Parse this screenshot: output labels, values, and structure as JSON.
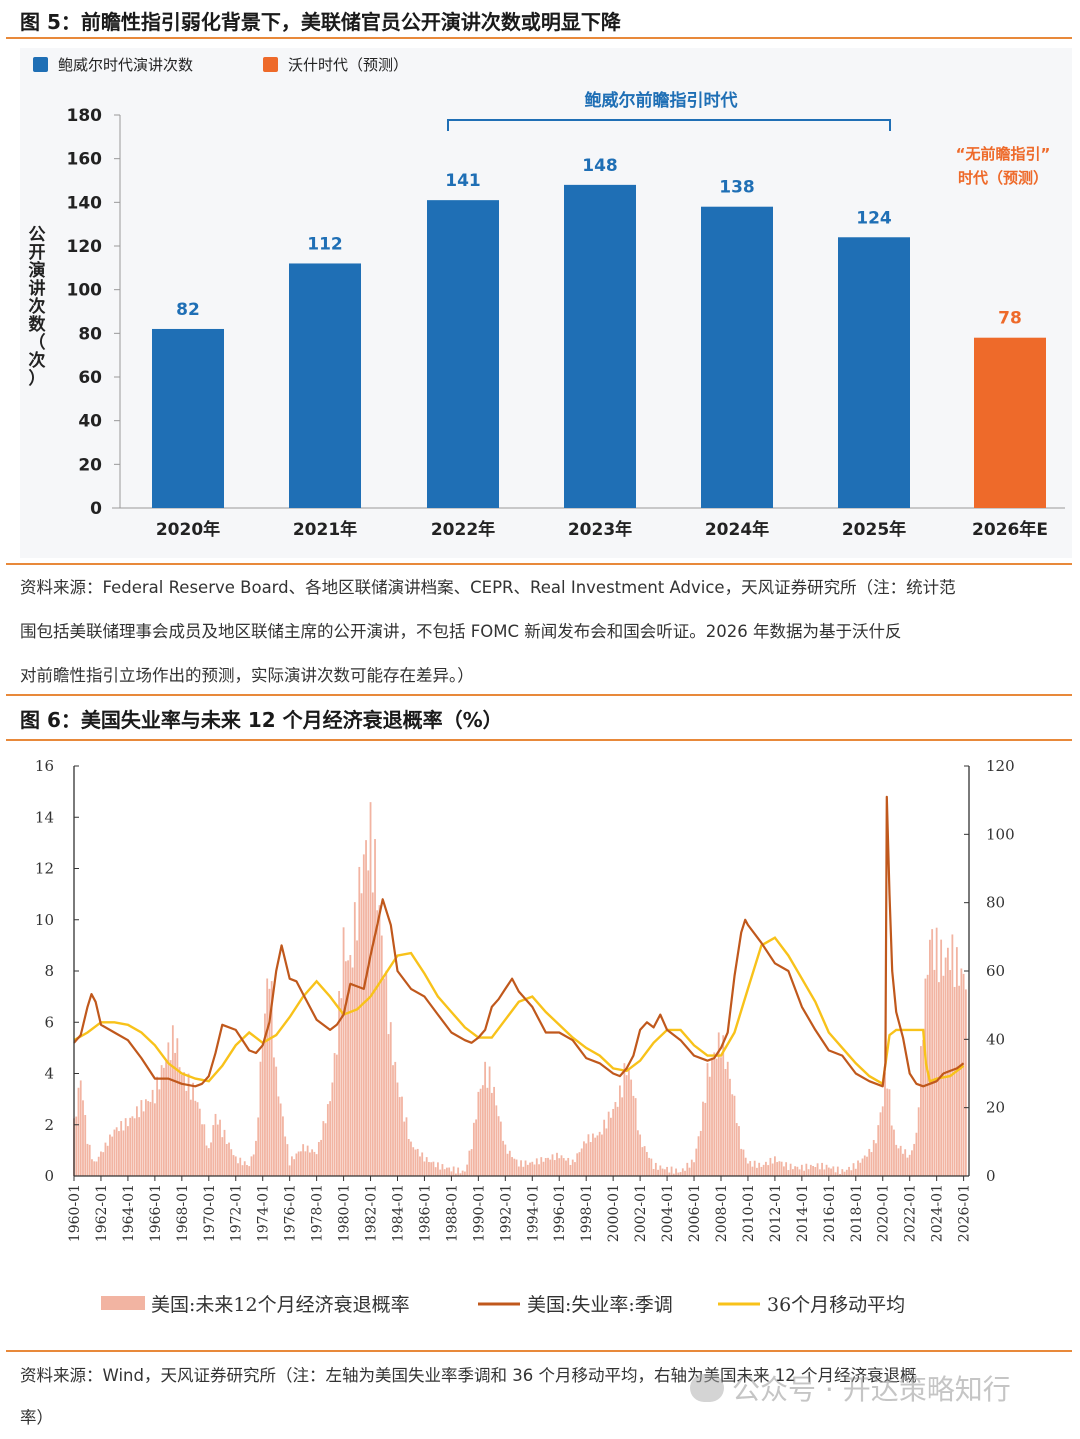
{
  "figure5": {
    "title": "图 5：前瞻性指引弱化背景下，美联储官员公开演讲次数或明显下降",
    "note_lines": [
      "资料来源：Federal Reserve Board、各地区联储演讲档案、CEPR、Real Investment Advice，天风证券研究所（注：统计范",
      "围包括美联储理事会成员及地区联储主席的公开演讲，不包括 FOMC 新闻发布会和国会听证。2026 年数据为基于沃什反",
      "对前瞻性指引立场作出的预测，实际演讲次数可能存在差异。）"
    ]
  },
  "figure6": {
    "title": "图 6：美国失业率与未来 12 个月经济衰退概率（%）",
    "note_lines": [
      "资料来源：Wind，天风证券研究所（注：左轴为美国失业率季调和 36 个月移动平均，右轴为美国未来 12 个月经济衰退概",
      "率）"
    ]
  },
  "watermark": "公众号 · 开达策略知行",
  "colors": {
    "blue": "#1f6fb5",
    "orange": "#ee6a2a",
    "rule": "#e8893a",
    "recession": "#f2b4a2",
    "unemp": "#c0581c",
    "ma": "#f8c21a"
  },
  "chart_data": [
    {
      "type": "bar",
      "categories": [
        "2020年",
        "2021年",
        "2022年",
        "2023年",
        "2024年",
        "2025年",
        "2026年E"
      ],
      "values": [
        82,
        112,
        141,
        148,
        138,
        124,
        78
      ],
      "series": [
        {
          "name": "鲍威尔时代演讲次数",
          "values": [
            82,
            112,
            141,
            148,
            138,
            124,
            null
          ]
        },
        {
          "name": "沃什时代（预测）",
          "values": [
            null,
            null,
            null,
            null,
            null,
            null,
            78
          ]
        }
      ],
      "ylabel": "公开演讲次数（次）",
      "ylim": [
        0,
        180
      ],
      "yticks": [
        0,
        20,
        40,
        60,
        80,
        100,
        120,
        140,
        160,
        180
      ],
      "annotations": [
        "鲍威尔前瞻指引时代",
        "“无前瞻指引”",
        "时代（预测）"
      ],
      "legend_position": "top-left",
      "grid": false
    },
    {
      "type": "line",
      "x_ticks": [
        "1960-01",
        "1962-01",
        "1964-01",
        "1966-01",
        "1968-01",
        "1970-01",
        "1972-01",
        "1974-01",
        "1976-01",
        "1978-01",
        "1980-01",
        "1982-01",
        "1984-01",
        "1986-01",
        "1988-01",
        "1990-01",
        "1992-01",
        "1994-01",
        "1996-01",
        "1998-01",
        "2000-01",
        "2002-01",
        "2004-01",
        "2006-01",
        "2008-01",
        "2010-01",
        "2012-01",
        "2014-01",
        "2016-01",
        "2018-01",
        "2020-01",
        "2022-01",
        "2024-01",
        "2026-01"
      ],
      "ylim_left": [
        0,
        16
      ],
      "yticks_left": [
        0,
        2,
        4,
        6,
        8,
        10,
        12,
        14,
        16
      ],
      "ylim_right": [
        0,
        120
      ],
      "yticks_right": [
        0,
        20,
        40,
        60,
        80,
        100,
        120
      ],
      "legend_position": "bottom",
      "grid": false,
      "series": [
        {
          "name": "美国:未来12个月经济衰退概率",
          "axis": "right",
          "kind": "area",
          "x": [
            1960.0,
            1960.5,
            1961.0,
            1961.5,
            1962.0,
            1963.0,
            1964.0,
            1965.0,
            1966.0,
            1967.0,
            1967.5,
            1968.0,
            1969.0,
            1969.5,
            1970.0,
            1970.5,
            1971.0,
            1972.0,
            1973.0,
            1973.5,
            1974.0,
            1974.5,
            1975.0,
            1976.0,
            1977.0,
            1978.0,
            1979.0,
            1979.5,
            1980.0,
            1980.5,
            1981.0,
            1981.5,
            1982.0,
            1982.5,
            1983.0,
            1983.5,
            1984.0,
            1985.0,
            1986.0,
            1987.0,
            1988.0,
            1989.0,
            1989.5,
            1990.0,
            1990.5,
            1991.0,
            1991.5,
            1992.0,
            1993.0,
            1994.0,
            1995.0,
            1996.0,
            1997.0,
            1998.0,
            1999.0,
            2000.0,
            2000.5,
            2001.0,
            2001.5,
            2002.0,
            2003.0,
            2004.0,
            2005.0,
            2006.0,
            2006.5,
            2007.0,
            2007.5,
            2008.0,
            2008.5,
            2009.0,
            2009.5,
            2010.0,
            2011.0,
            2012.0,
            2013.0,
            2014.0,
            2015.0,
            2016.0,
            2017.0,
            2018.0,
            2019.0,
            2019.5,
            2020.0,
            2020.3,
            2020.6,
            2021.0,
            2021.5,
            2022.0,
            2022.5,
            2023.0,
            2023.5,
            2024.0,
            2024.5,
            2025.0,
            2025.5,
            2026.0
          ],
          "values": [
            15,
            28,
            10,
            3,
            6,
            12,
            14,
            18,
            22,
            35,
            40,
            30,
            25,
            18,
            8,
            20,
            15,
            6,
            4,
            10,
            45,
            65,
            30,
            4,
            8,
            6,
            20,
            35,
            60,
            55,
            70,
            85,
            92,
            80,
            60,
            40,
            28,
            10,
            6,
            4,
            3,
            2,
            10,
            25,
            32,
            28,
            18,
            8,
            3,
            3,
            4,
            5,
            3,
            10,
            12,
            20,
            25,
            35,
            28,
            12,
            4,
            3,
            2,
            5,
            15,
            30,
            35,
            38,
            30,
            20,
            8,
            3,
            2,
            4,
            2,
            2,
            3,
            3,
            2,
            4,
            8,
            12,
            25,
            35,
            20,
            10,
            8,
            6,
            12,
            45,
            68,
            62,
            58,
            60,
            55,
            52
          ]
        },
        {
          "name": "美国:失业率:季调",
          "axis": "left",
          "x": [
            1960.0,
            1960.5,
            1961.0,
            1961.3,
            1961.6,
            1962.0,
            1963.0,
            1964.0,
            1965.0,
            1966.0,
            1967.0,
            1968.0,
            1969.0,
            1969.5,
            1970.0,
            1970.5,
            1971.0,
            1972.0,
            1973.0,
            1973.5,
            1974.0,
            1974.5,
            1975.0,
            1975.4,
            1976.0,
            1976.5,
            1977.0,
            1978.0,
            1979.0,
            1979.5,
            1980.0,
            1980.5,
            1981.0,
            1981.5,
            1982.0,
            1982.5,
            1982.9,
            1983.5,
            1984.0,
            1985.0,
            1986.0,
            1987.0,
            1988.0,
            1989.0,
            1989.5,
            1990.0,
            1990.5,
            1991.0,
            1991.5,
            1992.0,
            1992.5,
            1993.0,
            1994.0,
            1995.0,
            1996.0,
            1997.0,
            1998.0,
            1999.0,
            2000.0,
            2000.5,
            2001.0,
            2001.5,
            2002.0,
            2002.5,
            2003.0,
            2003.5,
            2004.0,
            2005.0,
            2006.0,
            2007.0,
            2007.5,
            2008.0,
            2008.5,
            2009.0,
            2009.5,
            2009.8,
            2010.0,
            2011.0,
            2012.0,
            2013.0,
            2014.0,
            2015.0,
            2016.0,
            2017.0,
            2018.0,
            2019.0,
            2020.0,
            2020.2,
            2020.3,
            2020.5,
            2020.7,
            2021.0,
            2021.5,
            2022.0,
            2022.5,
            2023.0,
            2023.5,
            2024.0,
            2024.5,
            2025.0,
            2025.5,
            2026.0
          ],
          "values": [
            5.2,
            5.5,
            6.6,
            7.1,
            6.8,
            5.9,
            5.6,
            5.3,
            4.6,
            3.8,
            3.8,
            3.6,
            3.5,
            3.6,
            3.9,
            4.8,
            5.9,
            5.7,
            4.9,
            4.8,
            5.1,
            6.0,
            8.0,
            9.0,
            7.7,
            7.6,
            7.1,
            6.1,
            5.7,
            5.9,
            6.3,
            7.5,
            7.4,
            7.3,
            8.6,
            9.8,
            10.8,
            9.8,
            8.0,
            7.3,
            7.0,
            6.3,
            5.6,
            5.3,
            5.2,
            5.4,
            5.7,
            6.6,
            6.9,
            7.3,
            7.7,
            7.2,
            6.6,
            5.6,
            5.6,
            5.3,
            4.6,
            4.4,
            4.0,
            3.9,
            4.2,
            4.7,
            5.7,
            6.0,
            5.8,
            6.3,
            5.7,
            5.3,
            4.7,
            4.5,
            4.6,
            5.0,
            5.6,
            7.8,
            9.5,
            10.0,
            9.8,
            9.1,
            8.3,
            8.0,
            6.6,
            5.7,
            4.9,
            4.7,
            4.0,
            3.7,
            3.5,
            4.4,
            14.8,
            11.0,
            8.0,
            6.4,
            5.4,
            4.0,
            3.6,
            3.5,
            3.6,
            3.7,
            4.0,
            4.1,
            4.2,
            4.4
          ]
        },
        {
          "name": "36个月移动平均",
          "axis": "left",
          "x": [
            1960.0,
            1961.0,
            1962.0,
            1963.0,
            1964.0,
            1965.0,
            1966.0,
            1967.0,
            1968.0,
            1969.0,
            1970.0,
            1971.0,
            1972.0,
            1973.0,
            1974.0,
            1975.0,
            1976.0,
            1977.0,
            1978.0,
            1979.0,
            1980.0,
            1981.0,
            1982.0,
            1983.0,
            1984.0,
            1985.0,
            1986.0,
            1987.0,
            1988.0,
            1989.0,
            1990.0,
            1991.0,
            1992.0,
            1993.0,
            1994.0,
            1995.0,
            1996.0,
            1997.0,
            1998.0,
            1999.0,
            2000.0,
            2001.0,
            2002.0,
            2003.0,
            2004.0,
            2005.0,
            2006.0,
            2007.0,
            2008.0,
            2009.0,
            2010.0,
            2011.0,
            2012.0,
            2013.0,
            2014.0,
            2015.0,
            2016.0,
            2017.0,
            2018.0,
            2019.0,
            2020.0,
            2020.5,
            2021.0,
            2022.0,
            2023.0,
            2023.2,
            2023.5,
            2024.0,
            2025.0,
            2026.0
          ],
          "values": [
            5.3,
            5.6,
            6.0,
            6.0,
            5.9,
            5.6,
            5.1,
            4.4,
            4.0,
            3.8,
            3.7,
            4.3,
            5.1,
            5.6,
            5.2,
            5.5,
            6.2,
            7.0,
            7.6,
            7.0,
            6.3,
            6.5,
            7.0,
            7.8,
            8.6,
            8.7,
            7.9,
            7.0,
            6.4,
            5.8,
            5.4,
            5.4,
            6.1,
            6.8,
            7.0,
            6.4,
            5.9,
            5.4,
            5.0,
            4.7,
            4.2,
            4.1,
            4.5,
            5.2,
            5.7,
            5.7,
            5.1,
            4.7,
            4.7,
            5.6,
            7.3,
            9.0,
            9.3,
            8.6,
            7.7,
            6.8,
            5.6,
            5.0,
            4.4,
            3.9,
            3.6,
            5.5,
            5.7,
            5.7,
            5.7,
            4.4,
            3.7,
            3.8,
            3.9,
            4.3
          ]
        }
      ]
    }
  ]
}
